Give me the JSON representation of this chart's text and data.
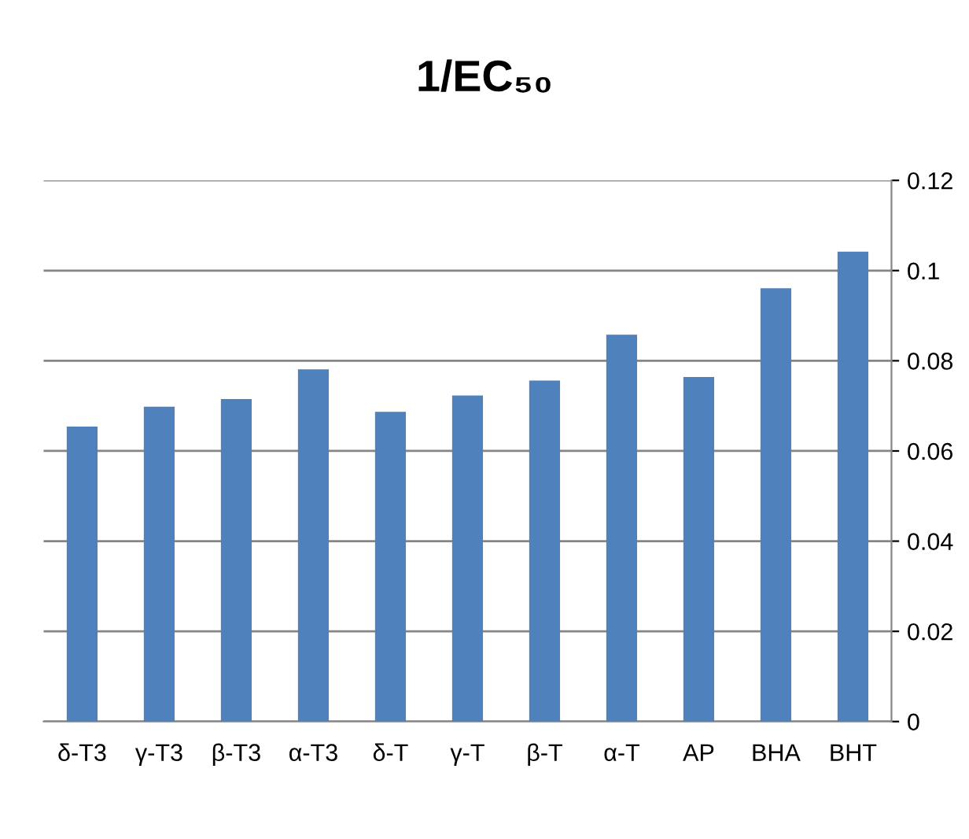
{
  "chart_data": {
    "type": "bar",
    "title": "1/EC₅₀",
    "categories": [
      "δ-T3",
      "γ-T3",
      "β-T3",
      "α-T3",
      "δ-T",
      "γ-T",
      "β-T",
      "α-T",
      "AP",
      "BHA",
      "BHT"
    ],
    "values": [
      0.0654,
      0.0698,
      0.0715,
      0.0781,
      0.0687,
      0.0723,
      0.0756,
      0.0858,
      0.0764,
      0.0961,
      0.1042
    ],
    "color": "#4f81bd",
    "ylim": [
      0,
      0.12
    ],
    "yticks": [
      0,
      0.02,
      0.04,
      0.06,
      0.08,
      0.1,
      0.12
    ],
    "grid": "y",
    "legend": false
  }
}
